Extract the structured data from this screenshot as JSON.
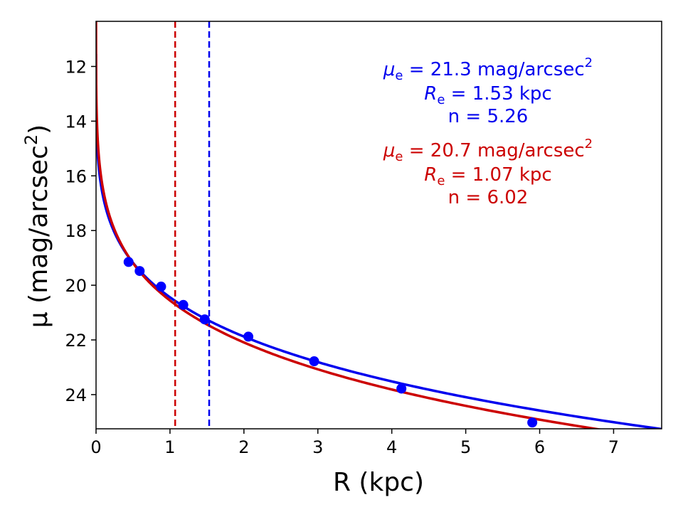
{
  "chart_data": {
    "type": "scatter",
    "xlabel": "R (kpc)",
    "ylabel_prefix": "μ (mag/arcsec",
    "ylabel_sup": "2",
    "ylabel_suffix": ")",
    "xlim": [
      0,
      7.65
    ],
    "ylim": [
      25.25,
      10.35
    ],
    "y_inverted": true,
    "x_ticks": [
      "0",
      "1",
      "2",
      "3",
      "4",
      "5",
      "6",
      "7"
    ],
    "y_ticks": [
      "12",
      "14",
      "16",
      "18",
      "20",
      "22",
      "24"
    ],
    "points": {
      "name": "measured profile",
      "color": "#0000ff",
      "x": [
        0.44,
        0.59,
        0.88,
        1.18,
        1.47,
        2.06,
        2.95,
        4.13,
        5.9
      ],
      "y": [
        19.15,
        19.48,
        20.05,
        20.72,
        21.25,
        21.88,
        22.78,
        23.78,
        25.02
      ]
    },
    "models": [
      {
        "name": "blue fit",
        "color": "#0000ee",
        "mu_e": 21.3,
        "R_e": 1.53,
        "n": 5.26,
        "label_mu_prefix": "μ",
        "label_mu_sub": "e",
        "label_mu_rest": " = 21.3 mag/arcsec",
        "label_mu_sup": "2",
        "label_re_prefix": "R",
        "label_re_sub": "e",
        "label_re_rest": " = 1.53 kpc",
        "label_n": "n = 5.26"
      },
      {
        "name": "red fit",
        "color": "#cc0000",
        "mu_e": 20.7,
        "R_e": 1.07,
        "n": 6.02,
        "label_mu_prefix": "μ",
        "label_mu_sub": "e",
        "label_mu_rest": " = 20.7 mag/arcsec",
        "label_mu_sup": "2",
        "label_re_prefix": "R",
        "label_re_sub": "e",
        "label_re_rest": " = 1.07 kpc",
        "label_n": "n = 6.02"
      }
    ],
    "vlines": [
      {
        "x": 1.07,
        "color": "#cc0000",
        "style": "dashed"
      },
      {
        "x": 1.53,
        "color": "#0000ee",
        "style": "dashed"
      }
    ]
  }
}
